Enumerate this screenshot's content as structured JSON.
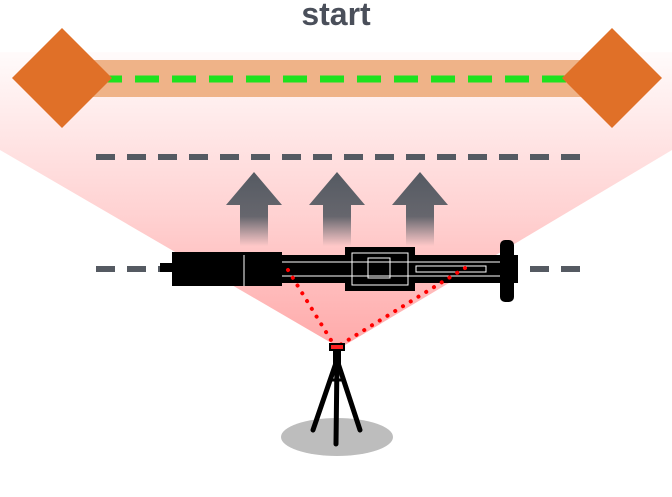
{
  "title": "start",
  "colors": {
    "title_text": "#4a4f5a",
    "start_band": "#efb388",
    "start_line": "#1ee21e",
    "marker": "#e07028",
    "guide_dash": "#555a62",
    "arrow": "#555a62",
    "field_of_view": "#ff9a9a",
    "laser_dots": "#ff0000",
    "instrument": "#000000",
    "tripod": "#000000",
    "shadow": "#bdbdbd"
  },
  "icons": {
    "markers": "diamond",
    "arrows": "up-arrow",
    "instrument": "telescope",
    "stand": "tripod"
  }
}
